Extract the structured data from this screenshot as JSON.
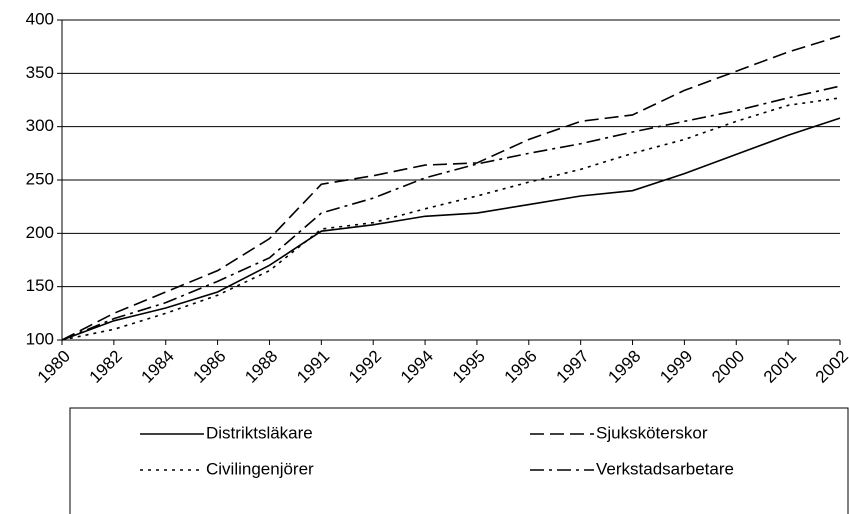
{
  "chart_data": {
    "type": "line",
    "categories": [
      "1980",
      "1982",
      "1984",
      "1986",
      "1988",
      "1991",
      "1992",
      "1994",
      "1995",
      "1996",
      "1997",
      "1998",
      "1999",
      "2000",
      "2001",
      "2002"
    ],
    "series": [
      {
        "name": "Distriktsläkare",
        "color": "#000000",
        "dash": "solid",
        "values": [
          100,
          118,
          130,
          145,
          170,
          202,
          208,
          216,
          219,
          227,
          235,
          240,
          256,
          274,
          292,
          308
        ]
      },
      {
        "name": "Sjuksköterskor",
        "color": "#000000",
        "dash": "dashed",
        "values": [
          100,
          125,
          145,
          165,
          195,
          246,
          254,
          264,
          266,
          288,
          305,
          311,
          334,
          352,
          370,
          385
        ]
      },
      {
        "name": "Civilingenjörer",
        "color": "#000000",
        "dash": "dotted",
        "values": [
          100,
          110,
          125,
          142,
          165,
          204,
          210,
          223,
          235,
          248,
          260,
          275,
          288,
          305,
          320,
          327
        ]
      },
      {
        "name": "Verkstadsarbetare",
        "color": "#000000",
        "dash": "dashdot",
        "values": [
          100,
          120,
          135,
          155,
          177,
          219,
          233,
          252,
          265,
          275,
          284,
          295,
          305,
          315,
          327,
          338
        ]
      }
    ],
    "ylim": [
      100,
      400
    ],
    "yticks": [
      100,
      150,
      200,
      250,
      300,
      350,
      400
    ],
    "grid": true
  }
}
